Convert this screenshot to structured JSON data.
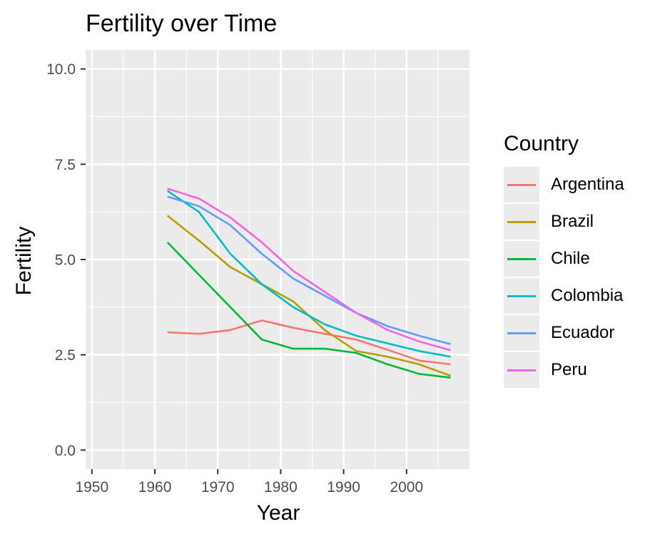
{
  "chart_data": {
    "type": "line",
    "title": "Fertility over Time",
    "xlabel": "Year",
    "ylabel": "Fertility",
    "xlim": [
      1949,
      2010
    ],
    "ylim": [
      -0.5,
      10.5
    ],
    "x_ticks": [
      1950,
      1960,
      1970,
      1980,
      1990,
      2000
    ],
    "x_tick_labels": [
      "1950",
      "1960",
      "1970",
      "1980",
      "1990",
      "2000"
    ],
    "y_ticks": [
      0,
      2.5,
      5,
      7.5,
      10
    ],
    "y_tick_labels": [
      "0.0",
      "2.5",
      "5.0",
      "7.5",
      "10.0"
    ],
    "grid": true,
    "panel_background": "#ebebeb",
    "legend_title": "Country",
    "legend_position": "right",
    "x": [
      1962,
      1967,
      1972,
      1977,
      1982,
      1987,
      1992,
      1997,
      2002,
      2007
    ],
    "series": [
      {
        "name": "Argentina",
        "color": "#f8766d",
        "values": [
          3.09,
          3.05,
          3.15,
          3.4,
          3.21,
          3.05,
          2.9,
          2.63,
          2.35,
          2.25
        ]
      },
      {
        "name": "Brazil",
        "color": "#b79f00",
        "values": [
          6.15,
          5.5,
          4.8,
          4.35,
          3.9,
          3.15,
          2.6,
          2.45,
          2.25,
          1.95
        ]
      },
      {
        "name": "Chile",
        "color": "#00ba38",
        "values": [
          5.45,
          4.6,
          3.75,
          2.9,
          2.66,
          2.66,
          2.55,
          2.25,
          2.0,
          1.9
        ]
      },
      {
        "name": "Colombia",
        "color": "#00bfc4",
        "values": [
          6.8,
          6.25,
          5.15,
          4.35,
          3.75,
          3.3,
          3.0,
          2.8,
          2.6,
          2.45
        ]
      },
      {
        "name": "Ecuador",
        "color": "#619cff",
        "values": [
          6.65,
          6.4,
          5.9,
          5.15,
          4.5,
          4.05,
          3.6,
          3.25,
          3.0,
          2.78
        ]
      },
      {
        "name": "Peru",
        "color": "#f564e3",
        "values": [
          6.86,
          6.6,
          6.1,
          5.45,
          4.7,
          4.15,
          3.6,
          3.15,
          2.85,
          2.62
        ]
      }
    ]
  }
}
